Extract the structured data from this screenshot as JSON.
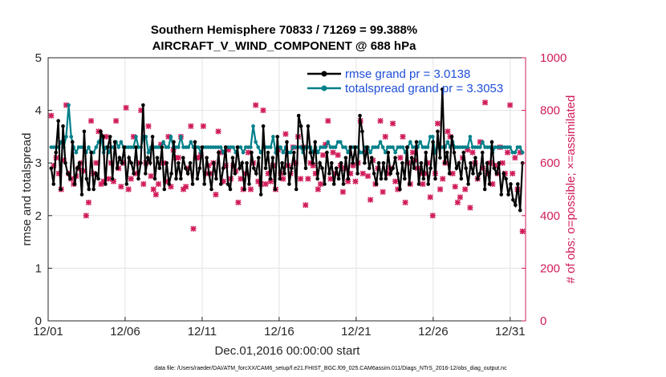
{
  "chart_data": {
    "type": "line",
    "title_line1": "Southern Hemisphere 70833 / 71269 = 99.388%",
    "title_line2": "AIRCRAFT_V_WIND_COMPONENT @ 688 hPa",
    "xlabel": "Dec.01,2016 00:00:00 start",
    "ylabel_left": "rmse and totalspread",
    "ylabel_right": "# of obs: o=possible; ×=assimilated",
    "footnote": "data file: /Users/raeder/DAI/ATM_forcXX/CAM6_setup/f.e21.FHIST_BGC.f09_025.CAM6assim.011/Diags_NTrS_2016-12/obs_diag_output.nc",
    "xlim": [
      0,
      31
    ],
    "ylim_left": [
      0,
      5
    ],
    "ylim_right": [
      0,
      1000
    ],
    "x_ticks": [
      0,
      5,
      10,
      15,
      20,
      25,
      30
    ],
    "x_tick_labels": [
      "12/01",
      "12/06",
      "12/11",
      "12/16",
      "12/21",
      "12/26",
      "12/31"
    ],
    "y_left_ticks": [
      "0",
      "1",
      "2",
      "3",
      "4",
      "5"
    ],
    "y_right_ticks": [
      "0",
      "200",
      "400",
      "600",
      "800",
      "1000"
    ],
    "grid": true,
    "legend": {
      "position": "top-right"
    },
    "colors": {
      "rmse": "#000000",
      "spread": "#00808a",
      "obs": "#d01c5b",
      "legend_text": "#1f4fd8"
    },
    "series": [
      {
        "name": "rmse grand pr = 3.0138",
        "axis": "left",
        "values": [
          2.9,
          2.6,
          3.2,
          3.8,
          2.5,
          3.7,
          3.0,
          2.8,
          2.7,
          3.4,
          2.6,
          2.9,
          3.0,
          2.4,
          3.6,
          2.7,
          2.5,
          3.2,
          2.5,
          2.8,
          2.7,
          3.6,
          3.5,
          2.6,
          3.3,
          3.5,
          2.7,
          3.4,
          2.9,
          3.1,
          3.0,
          3.3,
          2.6,
          3.1,
          3.0,
          2.8,
          3.3,
          2.7,
          3.0,
          4.1,
          2.8,
          3.1,
          3.0,
          3.5,
          2.7,
          3.1,
          2.9,
          3.3,
          2.5,
          3.0,
          2.6,
          2.8,
          3.4,
          2.7,
          3.0,
          2.7,
          3.1,
          2.9,
          2.8,
          3.0,
          2.6,
          3.4,
          2.7,
          2.9,
          3.3,
          2.6,
          3.1,
          2.8,
          2.5,
          3.0,
          2.7,
          3.2,
          2.6,
          2.9,
          3.3,
          2.6,
          2.5,
          3.1,
          2.8,
          3.3,
          2.9,
          3.0,
          2.5,
          3.0,
          2.6,
          3.2,
          2.9,
          2.8,
          3.1,
          2.4,
          3.7,
          2.9,
          3.2,
          2.7,
          3.1,
          2.5,
          3.5,
          2.7,
          3.0,
          2.8,
          3.4,
          2.6,
          2.9,
          3.2,
          2.5,
          3.9,
          3.7,
          3.3,
          2.9,
          3.7,
          3.2,
          3.0,
          3.4,
          2.7,
          3.0,
          2.9,
          2.6,
          3.2,
          2.8,
          3.0,
          2.6,
          2.9,
          2.7,
          3.0,
          2.6,
          3.1,
          2.7,
          3.3,
          3.0,
          3.3,
          2.8,
          3.9,
          3.6,
          3.0,
          3.3,
          2.9,
          3.1,
          2.8,
          2.6,
          3.0,
          2.7,
          3.0,
          2.7,
          3.2,
          2.8,
          2.9,
          3.1,
          2.8,
          2.5,
          3.0,
          2.7,
          3.3,
          2.6,
          3.1,
          2.9,
          3.4,
          2.6,
          3.0,
          2.7,
          3.2,
          2.6,
          2.9,
          3.4,
          2.7,
          3.6,
          3.1,
          4.4,
          3.0,
          3.2,
          2.8,
          3.5,
          3.2,
          2.9,
          3.0,
          2.7,
          3.2,
          2.9,
          2.6,
          3.0,
          2.8,
          3.1,
          2.7,
          2.8,
          3.2,
          2.5,
          3.0,
          2.6,
          3.4,
          2.9,
          2.8,
          3.0,
          2.4,
          2.8,
          2.7,
          2.4,
          2.6,
          2.3,
          2.2,
          2.6,
          2.1,
          3.0
        ],
        "values_note": "one value every 4/24 day approx (186 points), rmse per 4-hourly bin"
      },
      {
        "name": "totalspread grand pr = 3.3053",
        "axis": "left",
        "values": [
          3.3,
          3.3,
          3.3,
          3.3,
          3.4,
          3.3,
          3.5,
          4.1,
          3.5,
          3.3,
          3.2,
          3.3,
          3.3,
          3.3,
          3.2,
          3.3,
          3.2,
          3.2,
          3.3,
          3.4,
          3.5,
          3.2,
          3.3,
          3.2,
          3.3,
          3.3,
          3.4,
          3.3,
          3.4,
          3.3,
          3.3,
          3.3,
          3.3,
          3.3,
          3.5,
          3.3,
          3.3,
          3.5,
          3.5,
          3.2,
          3.3,
          3.3,
          3.3,
          3.3,
          3.3,
          3.4,
          3.3,
          3.3,
          3.5,
          3.3,
          3.3,
          3.3,
          3.5,
          3.3,
          3.3,
          3.3,
          3.4,
          3.3,
          3.3,
          3.3,
          3.2,
          3.3,
          3.3,
          3.3,
          3.3,
          3.3,
          3.3,
          3.3,
          3.3,
          3.2,
          3.3,
          3.3,
          3.3,
          3.3,
          3.2,
          3.3,
          3.3,
          3.2,
          3.3,
          3.3,
          3.3,
          3.7,
          3.4,
          3.3,
          3.2,
          3.3,
          3.3,
          3.3,
          3.3,
          3.5,
          3.2,
          3.3,
          3.3,
          3.2,
          3.3,
          3.2,
          3.2,
          3.3,
          3.3,
          3.3,
          3.3,
          3.2,
          3.3,
          3.3,
          3.3,
          3.2,
          3.3,
          3.2,
          3.3,
          3.3,
          3.3,
          3.4,
          3.3,
          3.3,
          3.3,
          3.4,
          3.4,
          3.3,
          3.3,
          3.2,
          3.3,
          3.3,
          3.3,
          3.3,
          3.2,
          3.2,
          3.3,
          3.3,
          3.2,
          3.3,
          3.3,
          3.3,
          3.4,
          3.3,
          3.2,
          3.3,
          3.3,
          3.3,
          3.2,
          3.3,
          3.3,
          3.3,
          3.2,
          3.3,
          3.4,
          3.3,
          3.3,
          3.3,
          3.4,
          3.3,
          3.3,
          3.3,
          3.5,
          3.5,
          3.2,
          3.3,
          3.3,
          3.3,
          3.3,
          3.4,
          3.3,
          3.4,
          3.3,
          3.3,
          3.3,
          3.3,
          3.3,
          3.3,
          3.5,
          3.3,
          3.3,
          3.3,
          3.3,
          3.4,
          3.3,
          3.3,
          3.3,
          3.2,
          3.3,
          3.3,
          3.3,
          3.3,
          3.3,
          3.3,
          3.3,
          3.2,
          3.2,
          3.3,
          3.3,
          3.2
        ]
      }
    ],
    "obs_counts": {
      "axis": "right",
      "values": [
        780,
        590,
        620,
        560,
        500,
        610,
        820,
        560,
        540,
        520,
        550,
        580,
        600,
        570,
        400,
        450,
        760,
        560,
        600,
        720,
        520,
        530,
        700,
        540,
        600,
        530,
        760,
        580,
        510,
        600,
        810,
        500,
        540,
        700,
        560,
        600,
        800,
        520,
        600,
        740,
        550,
        500,
        480,
        520,
        670,
        600,
        530,
        700,
        510,
        650,
        620,
        620,
        700,
        500,
        510,
        580,
        740,
        350,
        620,
        620,
        630,
        740,
        560,
        590,
        560,
        600,
        480,
        720,
        640,
        530,
        590,
        650,
        540,
        590,
        570,
        450,
        540,
        500,
        560,
        640,
        500,
        600,
        820,
        530,
        520,
        800,
        520,
        560,
        530,
        590,
        500,
        650,
        560,
        540,
        710,
        590,
        560,
        660,
        600,
        700,
        540,
        660,
        440,
        540,
        600,
        590,
        560,
        500,
        520,
        630,
        670,
        760,
        540,
        640,
        560,
        630,
        590,
        490,
        580,
        530,
        560,
        590,
        530,
        600,
        760,
        560,
        650,
        550,
        460,
        610,
        520,
        580,
        760,
        490,
        700,
        560,
        580,
        750,
        530,
        500,
        620,
        700,
        450,
        600,
        520,
        640,
        610,
        580,
        560,
        520,
        560,
        600,
        470,
        400,
        560,
        750,
        500,
        540,
        600,
        720,
        700,
        560,
        510,
        450,
        470,
        620,
        500,
        650,
        430,
        640,
        600,
        540,
        680,
        580,
        830,
        560,
        600,
        520,
        590,
        560,
        660,
        600,
        560,
        640,
        820,
        560,
        620,
        500,
        640,
        340
      ]
    }
  }
}
